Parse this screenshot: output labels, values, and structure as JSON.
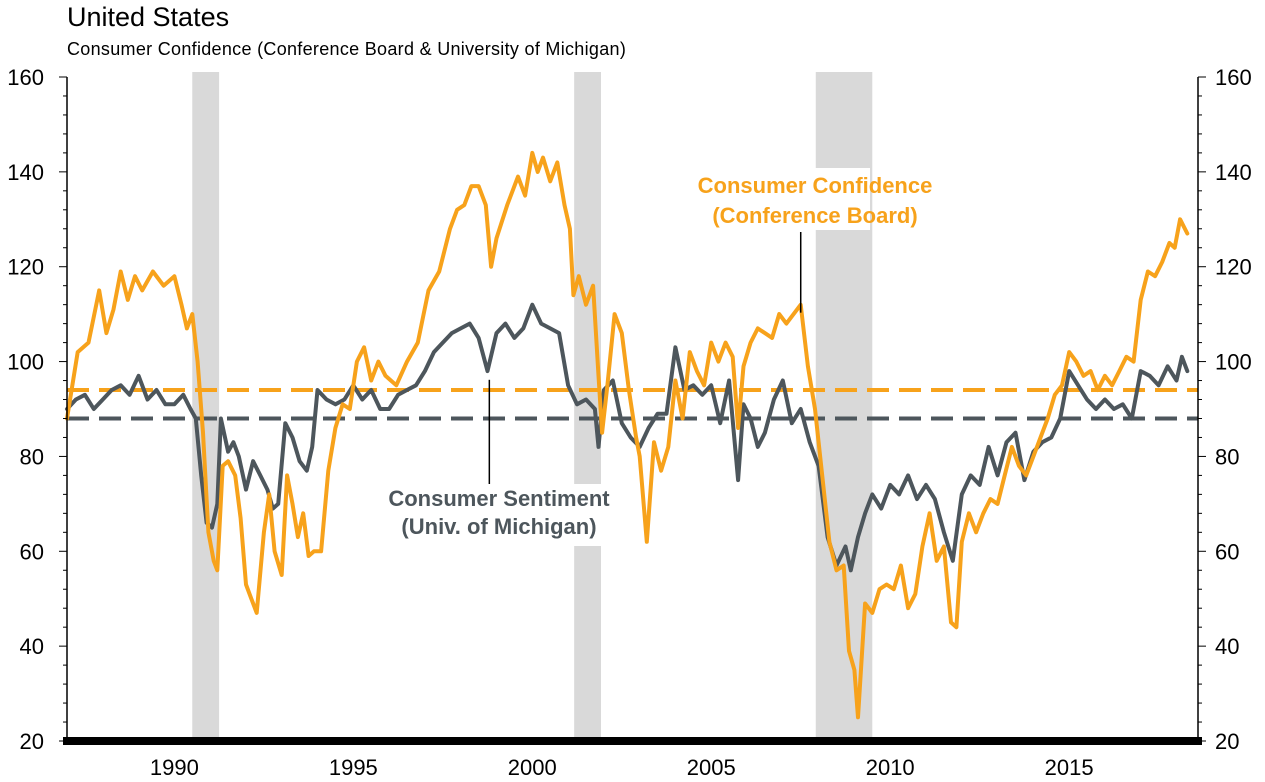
{
  "chart_data": {
    "type": "line",
    "title": "United States",
    "subtitle": "Consumer Confidence (Conference Board & University of Michigan)",
    "xlim": [
      1987.0,
      2018.6
    ],
    "ylim": [
      20,
      160
    ],
    "x_ticks": [
      1990,
      1995,
      2000,
      2005,
      2010,
      2015
    ],
    "y_ticks": [
      20,
      40,
      60,
      80,
      100,
      120,
      140,
      160
    ],
    "dual_y_axis": true,
    "grid": false,
    "colors": {
      "confidence": "#f7a21b",
      "sentiment": "#4d565c",
      "recession": "#d9d9d9",
      "axis": "#000000"
    },
    "recessions": [
      {
        "start": 1990.5,
        "end": 1991.25
      },
      {
        "start": 2001.17,
        "end": 2001.92
      },
      {
        "start": 2007.92,
        "end": 2009.5
      }
    ],
    "reference_lines": [
      {
        "series": "Consumer Confidence (Conference Board)",
        "value": 94
      },
      {
        "series": "Consumer Sentiment (Univ. of Michigan)",
        "value": 88
      }
    ],
    "annotations": [
      {
        "series": "Consumer Confidence (Conference Board)",
        "lines": [
          "Consumer Confidence",
          "(Conference Board)"
        ],
        "point": [
          2007.5,
          112
        ]
      },
      {
        "series": "Consumer Sentiment (Univ. of Michigan)",
        "lines": [
          "Consumer Sentiment",
          "(Univ. of Michigan)"
        ],
        "point": [
          1998.8,
          97
        ]
      }
    ],
    "series": [
      {
        "name": "Consumer Confidence (Conference Board)",
        "points": [
          [
            1987.0,
            88
          ],
          [
            1987.3,
            102
          ],
          [
            1987.6,
            104
          ],
          [
            1987.9,
            115
          ],
          [
            1988.1,
            106
          ],
          [
            1988.3,
            111
          ],
          [
            1988.5,
            119
          ],
          [
            1988.7,
            113
          ],
          [
            1988.9,
            118
          ],
          [
            1989.1,
            115
          ],
          [
            1989.4,
            119
          ],
          [
            1989.7,
            116
          ],
          [
            1990.0,
            118
          ],
          [
            1990.2,
            112
          ],
          [
            1990.35,
            107
          ],
          [
            1990.5,
            110
          ],
          [
            1990.65,
            100
          ],
          [
            1990.8,
            85
          ],
          [
            1990.95,
            64
          ],
          [
            1991.1,
            58
          ],
          [
            1991.2,
            56
          ],
          [
            1991.35,
            78
          ],
          [
            1991.5,
            79
          ],
          [
            1991.7,
            76
          ],
          [
            1991.85,
            67
          ],
          [
            1992.0,
            53
          ],
          [
            1992.15,
            50
          ],
          [
            1992.3,
            47
          ],
          [
            1992.5,
            64
          ],
          [
            1992.65,
            72
          ],
          [
            1992.8,
            60
          ],
          [
            1993.0,
            55
          ],
          [
            1993.15,
            76
          ],
          [
            1993.3,
            70
          ],
          [
            1993.45,
            63
          ],
          [
            1993.6,
            68
          ],
          [
            1993.75,
            59
          ],
          [
            1993.9,
            60
          ],
          [
            1994.1,
            60
          ],
          [
            1994.3,
            77
          ],
          [
            1994.5,
            86
          ],
          [
            1994.7,
            91
          ],
          [
            1994.9,
            90
          ],
          [
            1995.1,
            100
          ],
          [
            1995.3,
            103
          ],
          [
            1995.5,
            96
          ],
          [
            1995.7,
            100
          ],
          [
            1995.9,
            97
          ],
          [
            1996.2,
            95
          ],
          [
            1996.5,
            100
          ],
          [
            1996.8,
            104
          ],
          [
            1997.1,
            115
          ],
          [
            1997.4,
            119
          ],
          [
            1997.7,
            128
          ],
          [
            1997.9,
            132
          ],
          [
            1998.1,
            133
          ],
          [
            1998.3,
            137
          ],
          [
            1998.5,
            137
          ],
          [
            1998.7,
            133
          ],
          [
            1998.85,
            120
          ],
          [
            1999.0,
            126
          ],
          [
            1999.3,
            133
          ],
          [
            1999.6,
            139
          ],
          [
            1999.8,
            135
          ],
          [
            2000.0,
            144
          ],
          [
            2000.15,
            140
          ],
          [
            2000.3,
            143
          ],
          [
            2000.5,
            138
          ],
          [
            2000.7,
            142
          ],
          [
            2000.9,
            133
          ],
          [
            2001.05,
            128
          ],
          [
            2001.15,
            114
          ],
          [
            2001.3,
            118
          ],
          [
            2001.5,
            112
          ],
          [
            2001.7,
            116
          ],
          [
            2001.85,
            97
          ],
          [
            2001.95,
            85
          ],
          [
            2002.1,
            95
          ],
          [
            2002.3,
            110
          ],
          [
            2002.5,
            106
          ],
          [
            2002.7,
            94
          ],
          [
            2002.9,
            84
          ],
          [
            2003.0,
            80
          ],
          [
            2003.2,
            62
          ],
          [
            2003.4,
            83
          ],
          [
            2003.6,
            77
          ],
          [
            2003.8,
            82
          ],
          [
            2004.0,
            96
          ],
          [
            2004.2,
            88
          ],
          [
            2004.4,
            102
          ],
          [
            2004.6,
            98
          ],
          [
            2004.8,
            95
          ],
          [
            2005.0,
            104
          ],
          [
            2005.2,
            100
          ],
          [
            2005.4,
            104
          ],
          [
            2005.6,
            101
          ],
          [
            2005.75,
            86
          ],
          [
            2005.9,
            99
          ],
          [
            2006.1,
            104
          ],
          [
            2006.3,
            107
          ],
          [
            2006.5,
            106
          ],
          [
            2006.7,
            105
          ],
          [
            2006.9,
            110
          ],
          [
            2007.1,
            108
          ],
          [
            2007.3,
            110
          ],
          [
            2007.5,
            112
          ],
          [
            2007.7,
            99
          ],
          [
            2007.9,
            90
          ],
          [
            2008.1,
            76
          ],
          [
            2008.3,
            62
          ],
          [
            2008.5,
            56
          ],
          [
            2008.7,
            57
          ],
          [
            2008.85,
            39
          ],
          [
            2009.0,
            35
          ],
          [
            2009.1,
            25
          ],
          [
            2009.3,
            49
          ],
          [
            2009.5,
            47
          ],
          [
            2009.7,
            52
          ],
          [
            2009.9,
            53
          ],
          [
            2010.1,
            52
          ],
          [
            2010.3,
            57
          ],
          [
            2010.5,
            48
          ],
          [
            2010.7,
            51
          ],
          [
            2010.9,
            61
          ],
          [
            2011.1,
            68
          ],
          [
            2011.3,
            58
          ],
          [
            2011.5,
            61
          ],
          [
            2011.7,
            45
          ],
          [
            2011.85,
            44
          ],
          [
            2012.0,
            62
          ],
          [
            2012.2,
            68
          ],
          [
            2012.4,
            64
          ],
          [
            2012.6,
            68
          ],
          [
            2012.8,
            71
          ],
          [
            2013.0,
            70
          ],
          [
            2013.2,
            76
          ],
          [
            2013.4,
            82
          ],
          [
            2013.6,
            78
          ],
          [
            2013.8,
            76
          ],
          [
            2014.0,
            80
          ],
          [
            2014.2,
            84
          ],
          [
            2014.4,
            88
          ],
          [
            2014.6,
            93
          ],
          [
            2014.8,
            95
          ],
          [
            2015.0,
            102
          ],
          [
            2015.2,
            100
          ],
          [
            2015.4,
            97
          ],
          [
            2015.6,
            98
          ],
          [
            2015.8,
            94
          ],
          [
            2016.0,
            97
          ],
          [
            2016.2,
            95
          ],
          [
            2016.4,
            98
          ],
          [
            2016.6,
            101
          ],
          [
            2016.8,
            100
          ],
          [
            2017.0,
            113
          ],
          [
            2017.2,
            119
          ],
          [
            2017.4,
            118
          ],
          [
            2017.6,
            121
          ],
          [
            2017.8,
            125
          ],
          [
            2017.95,
            124
          ],
          [
            2018.1,
            130
          ],
          [
            2018.3,
            127
          ]
        ]
      },
      {
        "name": "Consumer Sentiment (Univ. of Michigan)",
        "points": [
          [
            1987.0,
            90
          ],
          [
            1987.25,
            92
          ],
          [
            1987.5,
            93
          ],
          [
            1987.75,
            90
          ],
          [
            1988.0,
            92
          ],
          [
            1988.25,
            94
          ],
          [
            1988.5,
            95
          ],
          [
            1988.75,
            93
          ],
          [
            1989.0,
            97
          ],
          [
            1989.25,
            92
          ],
          [
            1989.5,
            94
          ],
          [
            1989.75,
            91
          ],
          [
            1990.0,
            91
          ],
          [
            1990.25,
            93
          ],
          [
            1990.45,
            90
          ],
          [
            1990.6,
            88
          ],
          [
            1990.75,
            76
          ],
          [
            1990.9,
            66
          ],
          [
            1991.05,
            65
          ],
          [
            1991.2,
            70
          ],
          [
            1991.3,
            88
          ],
          [
            1991.5,
            81
          ],
          [
            1991.65,
            83
          ],
          [
            1991.8,
            80
          ],
          [
            1992.0,
            73
          ],
          [
            1992.2,
            79
          ],
          [
            1992.4,
            76
          ],
          [
            1992.6,
            73
          ],
          [
            1992.75,
            69
          ],
          [
            1992.9,
            70
          ],
          [
            1993.1,
            87
          ],
          [
            1993.3,
            84
          ],
          [
            1993.5,
            79
          ],
          [
            1993.7,
            77
          ],
          [
            1993.85,
            82
          ],
          [
            1994.0,
            94
          ],
          [
            1994.25,
            92
          ],
          [
            1994.5,
            91
          ],
          [
            1994.75,
            92
          ],
          [
            1995.0,
            95
          ],
          [
            1995.25,
            92
          ],
          [
            1995.5,
            94
          ],
          [
            1995.75,
            90
          ],
          [
            1996.0,
            90
          ],
          [
            1996.25,
            93
          ],
          [
            1996.5,
            94
          ],
          [
            1996.75,
            95
          ],
          [
            1997.0,
            98
          ],
          [
            1997.25,
            102
          ],
          [
            1997.5,
            104
          ],
          [
            1997.75,
            106
          ],
          [
            1998.0,
            107
          ],
          [
            1998.25,
            108
          ],
          [
            1998.5,
            105
          ],
          [
            1998.75,
            98
          ],
          [
            1999.0,
            106
          ],
          [
            1999.25,
            108
          ],
          [
            1999.5,
            105
          ],
          [
            1999.75,
            107
          ],
          [
            2000.0,
            112
          ],
          [
            2000.25,
            108
          ],
          [
            2000.5,
            107
          ],
          [
            2000.75,
            106
          ],
          [
            2001.0,
            95
          ],
          [
            2001.25,
            91
          ],
          [
            2001.5,
            92
          ],
          [
            2001.75,
            90
          ],
          [
            2001.85,
            82
          ],
          [
            2002.0,
            94
          ],
          [
            2002.25,
            96
          ],
          [
            2002.5,
            87
          ],
          [
            2002.75,
            84
          ],
          [
            2003.0,
            82
          ],
          [
            2003.25,
            86
          ],
          [
            2003.5,
            89
          ],
          [
            2003.75,
            89
          ],
          [
            2004.0,
            103
          ],
          [
            2004.25,
            94
          ],
          [
            2004.5,
            95
          ],
          [
            2004.75,
            93
          ],
          [
            2005.0,
            95
          ],
          [
            2005.25,
            87
          ],
          [
            2005.5,
            96
          ],
          [
            2005.75,
            75
          ],
          [
            2005.9,
            91
          ],
          [
            2006.1,
            88
          ],
          [
            2006.3,
            82
          ],
          [
            2006.5,
            85
          ],
          [
            2006.75,
            92
          ],
          [
            2007.0,
            96
          ],
          [
            2007.25,
            87
          ],
          [
            2007.5,
            90
          ],
          [
            2007.75,
            83
          ],
          [
            2008.0,
            78
          ],
          [
            2008.25,
            63
          ],
          [
            2008.5,
            57
          ],
          [
            2008.75,
            61
          ],
          [
            2008.9,
            56
          ],
          [
            2009.1,
            63
          ],
          [
            2009.3,
            68
          ],
          [
            2009.5,
            72
          ],
          [
            2009.75,
            69
          ],
          [
            2010.0,
            74
          ],
          [
            2010.25,
            72
          ],
          [
            2010.5,
            76
          ],
          [
            2010.75,
            71
          ],
          [
            2011.0,
            74
          ],
          [
            2011.25,
            71
          ],
          [
            2011.5,
            64
          ],
          [
            2011.75,
            58
          ],
          [
            2012.0,
            72
          ],
          [
            2012.25,
            76
          ],
          [
            2012.5,
            74
          ],
          [
            2012.75,
            82
          ],
          [
            2013.0,
            76
          ],
          [
            2013.25,
            83
          ],
          [
            2013.5,
            85
          ],
          [
            2013.75,
            75
          ],
          [
            2014.0,
            81
          ],
          [
            2014.25,
            83
          ],
          [
            2014.5,
            84
          ],
          [
            2014.75,
            88
          ],
          [
            2015.0,
            98
          ],
          [
            2015.25,
            95
          ],
          [
            2015.5,
            92
          ],
          [
            2015.75,
            90
          ],
          [
            2016.0,
            92
          ],
          [
            2016.25,
            90
          ],
          [
            2016.5,
            91
          ],
          [
            2016.75,
            88
          ],
          [
            2017.0,
            98
          ],
          [
            2017.25,
            97
          ],
          [
            2017.5,
            95
          ],
          [
            2017.75,
            99
          ],
          [
            2018.0,
            96
          ],
          [
            2018.15,
            101
          ],
          [
            2018.3,
            98
          ]
        ]
      }
    ]
  }
}
